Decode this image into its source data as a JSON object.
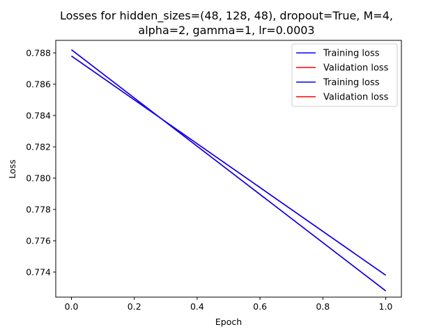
{
  "chart_data": {
    "type": "line",
    "title_lines": [
      "Losses for hidden_sizes=(48, 128, 48), dropout=True, M=4,",
      "alpha=2, gamma=1, lr=0.0003"
    ],
    "xlabel": "Epoch",
    "ylabel": "Loss",
    "xlim": [
      -0.05,
      1.05
    ],
    "ylim": [
      0.7724,
      0.7888
    ],
    "x_ticks": [
      "0.0",
      "0.2",
      "0.4",
      "0.6",
      "0.8",
      "1.0"
    ],
    "y_ticks": [
      "0.774",
      "0.776",
      "0.778",
      "0.780",
      "0.782",
      "0.784",
      "0.786",
      "0.788"
    ],
    "grid": false,
    "legend_position": "top-right",
    "series": [
      {
        "name": "Training loss",
        "color": "#0000ff",
        "x": [
          0,
          1
        ],
        "y": [
          0.7882,
          0.7728
        ]
      },
      {
        "name": "Validation loss",
        "color": "#ff0000",
        "x": [
          0,
          1
        ],
        "y": [
          0.7882,
          0.7728
        ]
      },
      {
        "name": "Training loss",
        "color": "#0000ff",
        "x": [
          0,
          1
        ],
        "y": [
          0.7878,
          0.7738
        ]
      },
      {
        "name": "Validation loss",
        "color": "#ff0000",
        "x": [
          0,
          1
        ],
        "y": [
          0.7878,
          0.7738
        ]
      }
    ]
  }
}
